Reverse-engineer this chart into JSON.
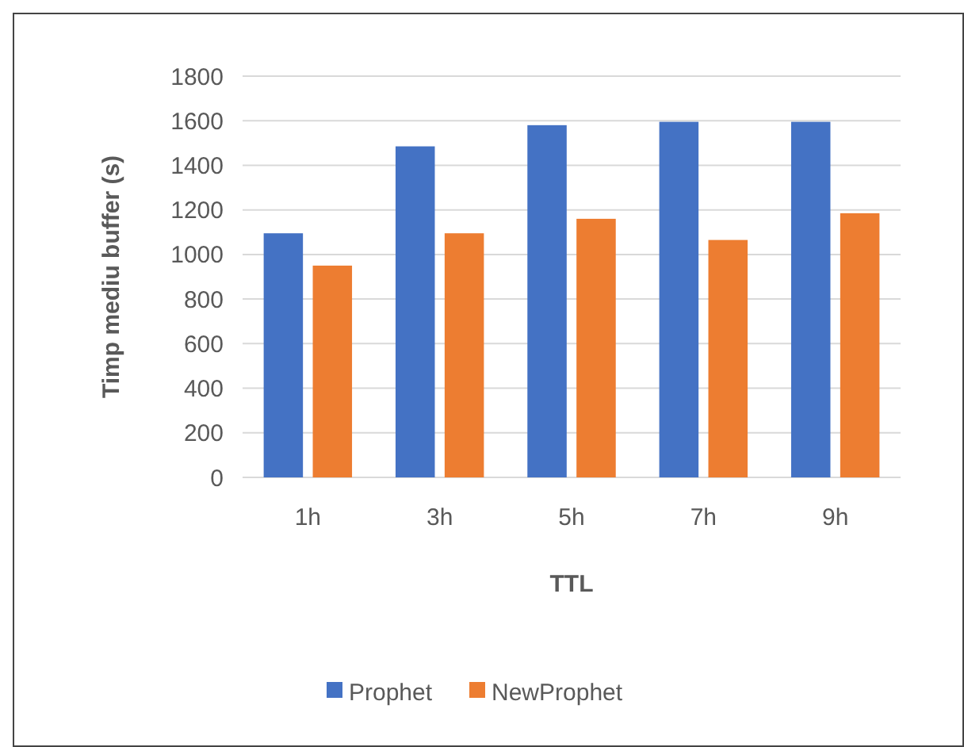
{
  "chart_data": {
    "type": "bar",
    "xlabel": "TTL",
    "ylabel": "Timp mediu buffer (s)",
    "categories": [
      "1h",
      "3h",
      "5h",
      "7h",
      "9h"
    ],
    "series": [
      {
        "name": "Prophet",
        "color": "#4472c4",
        "values": [
          1095,
          1485,
          1580,
          1595,
          1595
        ]
      },
      {
        "name": "NewProphet",
        "color": "#ed7d31",
        "values": [
          950,
          1095,
          1160,
          1065,
          1185
        ]
      }
    ],
    "ylim": [
      0,
      1800
    ],
    "yticks": [
      0,
      200,
      400,
      600,
      800,
      1000,
      1200,
      1400,
      1600,
      1800
    ],
    "grid": "y",
    "legend": "bottom"
  }
}
